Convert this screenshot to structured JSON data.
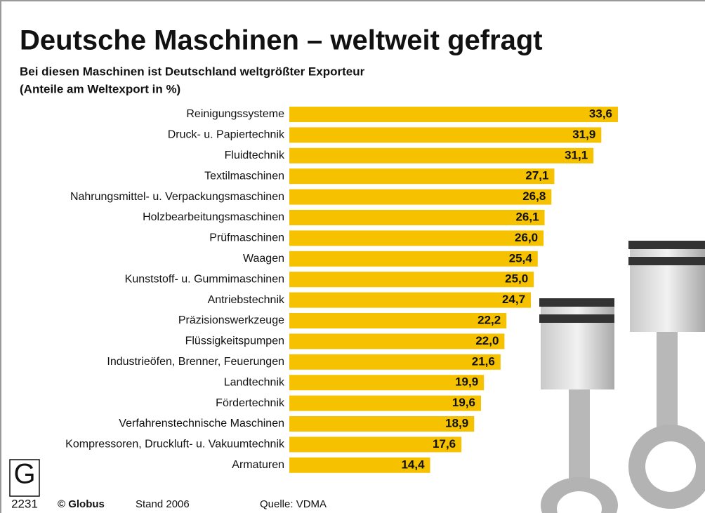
{
  "chart_data": {
    "type": "bar",
    "orientation": "horizontal",
    "title": "Deutsche Maschinen – weltweit gefragt",
    "subtitle": [
      "Bei diesen Maschinen ist Deutschland weltgrößter Exporteur",
      "(Anteile am Weltexport in %)"
    ],
    "categories": [
      "Reinigungssysteme",
      "Druck- u. Papiertechnik",
      "Fluidtechnik",
      "Textilmaschinen",
      "Nahrungsmittel- u. Verpackungsmaschinen",
      "Holzbearbeitungsmaschinen",
      "Prüfmaschinen",
      "Waagen",
      "Kunststoff- u. Gummimaschinen",
      "Antriebstechnik",
      "Präzisionswerkzeuge",
      "Flüssigkeitspumpen",
      "Industrieöfen, Brenner, Feuerungen",
      "Landtechnik",
      "Fördertechnik",
      "Verfahrenstechnische Maschinen",
      "Kompressoren, Druckluft- u. Vakuumtechnik",
      "Armaturen"
    ],
    "values": [
      33.6,
      31.9,
      31.1,
      27.1,
      26.8,
      26.1,
      26.0,
      25.4,
      25.0,
      24.7,
      22.2,
      22.0,
      21.6,
      19.9,
      19.6,
      18.9,
      17.6,
      14.4
    ],
    "value_labels": [
      "33,6",
      "31,9",
      "31,1",
      "27,1",
      "26,8",
      "26,1",
      "26,0",
      "25,4",
      "25,0",
      "24,7",
      "22,2",
      "22,0",
      "21,6",
      "19,9",
      "19,6",
      "18,9",
      "17,6",
      "14,4"
    ],
    "color": "#f6c200",
    "logo": "G",
    "logo_number": "2231",
    "credit": "© Globus",
    "note": "Stand 2006",
    "source": "Quelle: VDMA"
  }
}
